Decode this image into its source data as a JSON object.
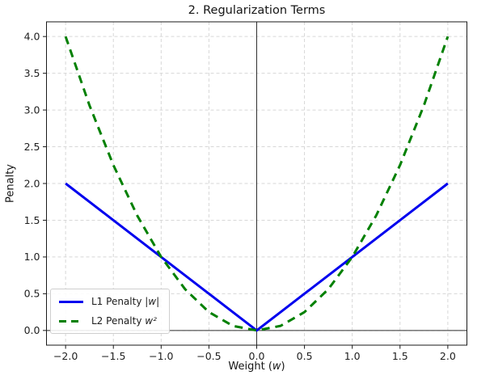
{
  "figure": {
    "title": "2. Regularization Terms",
    "xlabel": {
      "prefix": "Weight (",
      "math": "w",
      "suffix": ")"
    },
    "ylabel": "Penalty"
  },
  "chart_data": {
    "type": "line",
    "title": "2. Regularization Terms",
    "xlabel": "Weight (w)",
    "ylabel": "Penalty",
    "xlim": [
      -2.2,
      2.2
    ],
    "ylim": [
      -0.2,
      4.2
    ],
    "xticks": [
      -2.0,
      -1.5,
      -1.0,
      -0.5,
      0.0,
      0.5,
      1.0,
      1.5,
      2.0
    ],
    "xtick_labels": [
      "−2.0",
      "−1.5",
      "−1.0",
      "−0.5",
      "0.0",
      "0.5",
      "1.0",
      "1.5",
      "2.0"
    ],
    "yticks": [
      0.0,
      0.5,
      1.0,
      1.5,
      2.0,
      2.5,
      3.0,
      3.5,
      4.0
    ],
    "ytick_labels": [
      "0.0",
      "0.5",
      "1.0",
      "1.5",
      "2.0",
      "2.5",
      "3.0",
      "3.5",
      "4.0"
    ],
    "grid": true,
    "grid_color": "#d7d7d7",
    "spine_color": "#1a1a1a",
    "tick_color": "#1a1a1a",
    "label_color": "#1f1f1f",
    "axline_color": "#2f2f2f",
    "axlines": {
      "vertical_x": 0,
      "horizontal_y": 0
    },
    "legend": {
      "position": "lower left",
      "items": [
        {
          "label": "L1 Penalty ",
          "math": "|w|",
          "color": "#0000ee",
          "style": "solid"
        },
        {
          "label": "L2 Penalty ",
          "math": "w²",
          "color": "#008000",
          "style": "dashed"
        }
      ]
    },
    "series": [
      {
        "name": "L1 Penalty |w|",
        "formula": "abs(w)",
        "color": "#0000ee",
        "style": "solid",
        "linewidth": 3,
        "x": [
          -2.0,
          -1.5,
          -1.0,
          -0.5,
          0.0,
          0.5,
          1.0,
          1.5,
          2.0
        ],
        "y": [
          2.0,
          1.5,
          1.0,
          0.5,
          0.0,
          0.5,
          1.0,
          1.5,
          2.0
        ]
      },
      {
        "name": "L2 Penalty w²",
        "formula": "w^2",
        "color": "#008000",
        "style": "dashed",
        "linewidth": 3,
        "x": [
          -2.0,
          -1.75,
          -1.5,
          -1.25,
          -1.0,
          -0.75,
          -0.5,
          -0.25,
          0.0,
          0.25,
          0.5,
          0.75,
          1.0,
          1.25,
          1.5,
          1.75,
          2.0
        ],
        "y": [
          4.0,
          3.0625,
          2.25,
          1.5625,
          1.0,
          0.5625,
          0.25,
          0.0625,
          0.0,
          0.0625,
          0.25,
          0.5625,
          1.0,
          1.5625,
          2.25,
          3.0625,
          4.0
        ]
      }
    ]
  }
}
